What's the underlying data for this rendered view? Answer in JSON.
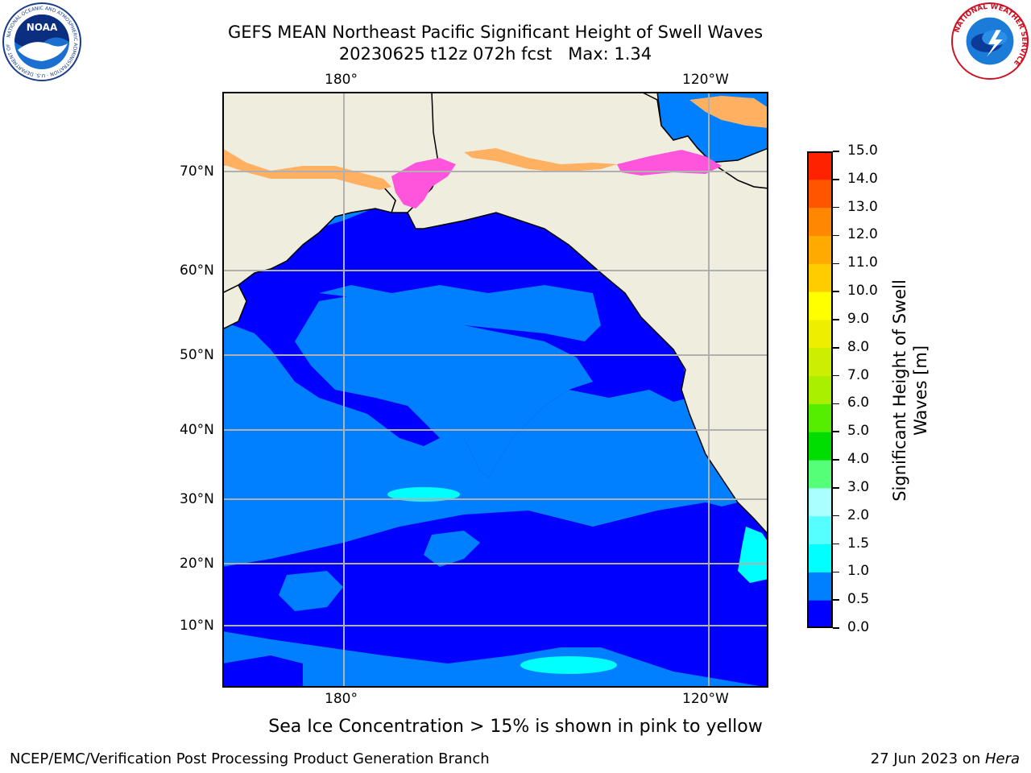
{
  "title": {
    "line1": "GEFS MEAN Northeast Pacific Significant Height of Swell Waves",
    "line2": "20230625 t12z 072h fcst   Max: 1.34"
  },
  "logos": {
    "noaa": {
      "text": "NOAA",
      "ring_text": "NATIONAL OCEANIC AND ATMOSPHERIC ADMINISTRATION · U.S. DEPARTMENT OF COMMERCE"
    },
    "nws": {
      "ring_text": "NATIONAL WEATHER SERVICE"
    }
  },
  "map": {
    "top_lon_labels": [
      "180°",
      "120°W"
    ],
    "bottom_lon_labels": [
      "180°",
      "120°W"
    ],
    "lat_labels": [
      "70°N",
      "60°N",
      "50°N",
      "40°N",
      "30°N",
      "20°N",
      "10°N"
    ],
    "colors": {
      "land": "#efedde",
      "ocean_deep": "#0000ff",
      "ocean_mid": "#0080ff",
      "ocean_cyan": "#00ffff",
      "ice_pink": "#ff55dd",
      "ice_orange": "#ffb060",
      "grid": "#b0b0b0"
    }
  },
  "colorbar": {
    "ticks": [
      "15.0",
      "14.0",
      "13.0",
      "12.0",
      "11.0",
      "10.0",
      "9.0",
      "8.0",
      "7.0",
      "6.0",
      "5.0",
      "4.0",
      "3.0",
      "2.0",
      "1.5",
      "1.0",
      "0.5",
      "0.0"
    ],
    "colors_bottom_to_top": [
      "#0000ff",
      "#0080ff",
      "#00ffff",
      "#55ffff",
      "#aaffff",
      "#55ff77",
      "#00dd00",
      "#55ee00",
      "#aaee00",
      "#ccee00",
      "#eeee00",
      "#ffff00",
      "#ffcc00",
      "#ffaa00",
      "#ff8800",
      "#ff5500",
      "#ff2200",
      "#ff0000"
    ],
    "label_line1": "Significant Height of Swell",
    "label_line2": "Waves [m]"
  },
  "caption": "Sea Ice Concentration > 15% is shown in pink to yellow",
  "footer": {
    "left": "NCEP/EMC/Verification Post Processing Product Generation Branch",
    "right_prefix": "27 Jun 2023 on ",
    "right_machine": "Hera"
  }
}
